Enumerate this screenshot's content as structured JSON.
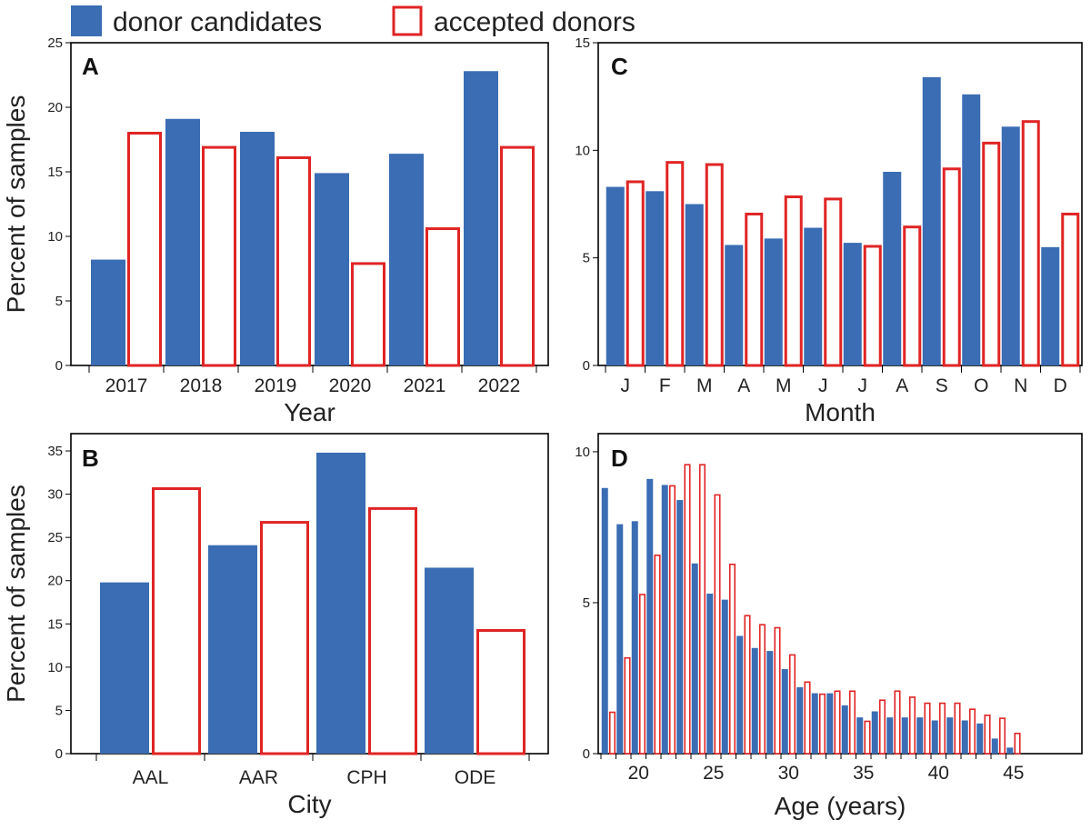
{
  "colors": {
    "candidates": "#3a6db3",
    "accepted_edge": "#e02424",
    "accepted_fill": "#ffffff",
    "frame": "#000000"
  },
  "legend": {
    "candidates_label": "donor candidates",
    "accepted_label": "accepted donors"
  },
  "chart_data": [
    {
      "panel": "A",
      "type": "bar",
      "xlabel": "Year",
      "ylabel": "Percent of samples",
      "categories": [
        "2017",
        "2018",
        "2019",
        "2020",
        "2021",
        "2022"
      ],
      "ylim": [
        0,
        25
      ],
      "yticks": [
        0,
        5,
        10,
        15,
        20,
        25
      ],
      "series": [
        {
          "name": "donor candidates",
          "values": [
            8.2,
            19.1,
            18.1,
            14.9,
            16.4,
            22.8
          ]
        },
        {
          "name": "accepted donors",
          "values": [
            18.1,
            17.0,
            16.2,
            8.0,
            10.7,
            17.0
          ]
        }
      ]
    },
    {
      "panel": "B",
      "type": "bar",
      "xlabel": "City",
      "ylabel": "Percent of samples",
      "categories": [
        "AAL",
        "AAR",
        "CPH",
        "ODE"
      ],
      "ylim": [
        0,
        37
      ],
      "yticks": [
        0,
        5,
        10,
        15,
        20,
        25,
        30,
        35
      ],
      "series": [
        {
          "name": "donor candidates",
          "values": [
            19.8,
            24.1,
            34.8,
            21.5
          ]
        },
        {
          "name": "accepted donors",
          "values": [
            30.8,
            26.9,
            28.5,
            14.4
          ]
        }
      ]
    },
    {
      "panel": "C",
      "type": "bar",
      "xlabel": "Month",
      "ylabel": "",
      "categories": [
        "J",
        "F",
        "M",
        "A",
        "M",
        "J",
        "J",
        "A",
        "S",
        "O",
        "N",
        "D"
      ],
      "ylim": [
        0,
        15
      ],
      "yticks": [
        0,
        5,
        10,
        15
      ],
      "series": [
        {
          "name": "donor candidates",
          "values": [
            8.3,
            8.1,
            7.5,
            5.6,
            5.9,
            6.4,
            5.7,
            9.0,
            13.4,
            12.6,
            11.1,
            5.5
          ]
        },
        {
          "name": "accepted donors",
          "values": [
            8.6,
            9.5,
            9.4,
            7.1,
            7.9,
            7.8,
            5.6,
            6.5,
            9.2,
            10.4,
            11.4,
            7.1
          ]
        }
      ]
    },
    {
      "panel": "D",
      "type": "bar",
      "xlabel": "Age (years)",
      "ylabel": "",
      "x": [
        18,
        19,
        20,
        21,
        22,
        23,
        24,
        25,
        26,
        27,
        28,
        29,
        30,
        31,
        32,
        33,
        34,
        35,
        36,
        37,
        38,
        39,
        40,
        41,
        42,
        43,
        44,
        45
      ],
      "xticks": [
        20,
        25,
        30,
        35,
        40,
        45
      ],
      "ylim": [
        0,
        10.6
      ],
      "yticks": [
        0,
        5,
        10
      ],
      "series": [
        {
          "name": "donor candidates",
          "values": [
            8.8,
            7.6,
            7.7,
            9.1,
            8.9,
            8.4,
            6.3,
            5.3,
            5.1,
            3.9,
            3.5,
            3.4,
            2.8,
            2.2,
            2.0,
            2.0,
            1.6,
            1.2,
            1.4,
            1.2,
            1.2,
            1.2,
            1.1,
            1.2,
            1.1,
            1.0,
            0.5,
            0.2
          ]
        },
        {
          "name": "accepted donors",
          "values": [
            1.4,
            3.2,
            5.3,
            6.6,
            8.9,
            9.6,
            9.6,
            8.6,
            6.3,
            4.6,
            4.3,
            4.2,
            3.3,
            2.4,
            2.0,
            2.1,
            2.1,
            1.1,
            1.8,
            2.1,
            1.9,
            1.7,
            1.7,
            1.7,
            1.5,
            1.3,
            1.2,
            0.7
          ]
        }
      ]
    }
  ]
}
